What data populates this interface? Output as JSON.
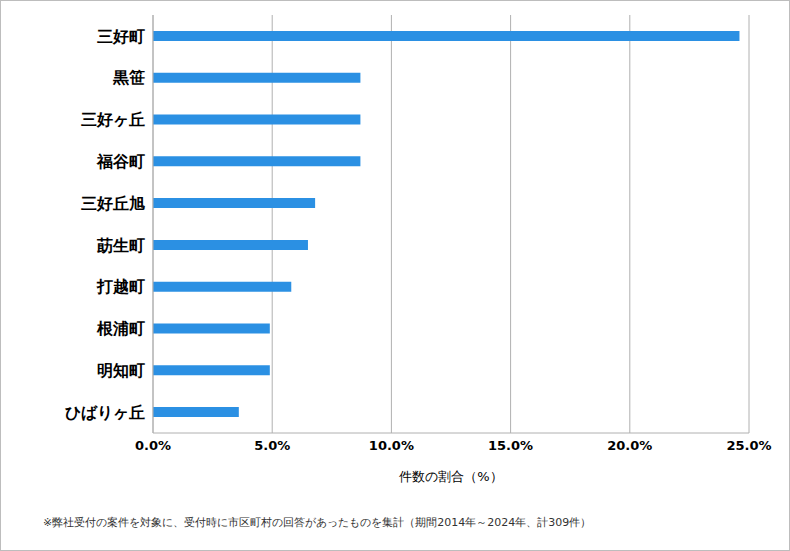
{
  "chart_data": {
    "type": "bar",
    "orientation": "horizontal",
    "categories": [
      "三好町",
      "黒笹",
      "三好ヶ丘",
      "福谷町",
      "三好丘旭",
      "莇生町",
      "打越町",
      "根浦町",
      "明知町",
      "ひばりヶ丘"
    ],
    "values": [
      24.6,
      8.7,
      8.7,
      8.7,
      6.8,
      6.5,
      5.8,
      4.9,
      4.9,
      3.6
    ],
    "color": "#2b90e3",
    "xlim": [
      0,
      25
    ],
    "xticks": [
      {
        "value": 0,
        "label": "0.0%"
      },
      {
        "value": 5,
        "label": "5.0%"
      },
      {
        "value": 10,
        "label": "10.0%"
      },
      {
        "value": 15,
        "label": "15.0%"
      },
      {
        "value": 20,
        "label": "20.0%"
      },
      {
        "value": 25,
        "label": "25.0%"
      }
    ],
    "x_label": "件数の割合（%）",
    "annotations": [
      "※弊社受付の案件を対象に、受付時に市区町村の回答があったものを集計（期間2014年～2024年、計309件）"
    ],
    "grid": true
  }
}
